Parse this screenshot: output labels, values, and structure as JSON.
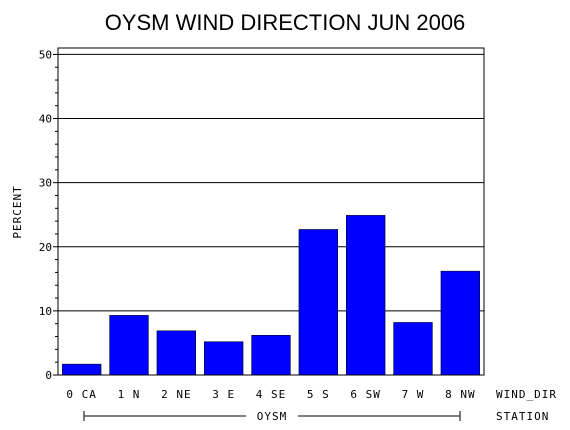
{
  "chart_data": {
    "type": "bar",
    "title": "OYSM WIND DIRECTION JUN 2006",
    "ylabel": "PERCENT",
    "categories": [
      "0 CA",
      "1 N",
      "2 NE",
      "3 E",
      "4 SE",
      "5 S",
      "6 SW",
      "7 W",
      "8 NW"
    ],
    "values": [
      1.7,
      9.3,
      6.9,
      5.2,
      6.2,
      22.7,
      24.9,
      8.2,
      16.2
    ],
    "ylim": [
      0,
      51
    ],
    "yticks": [
      0,
      10,
      20,
      30,
      40,
      50
    ],
    "grid": true,
    "bar_color": "#0000ff",
    "x_axis_name": "WIND_DIR",
    "group_label": "OYSM",
    "group_axis_name": "STATION"
  }
}
